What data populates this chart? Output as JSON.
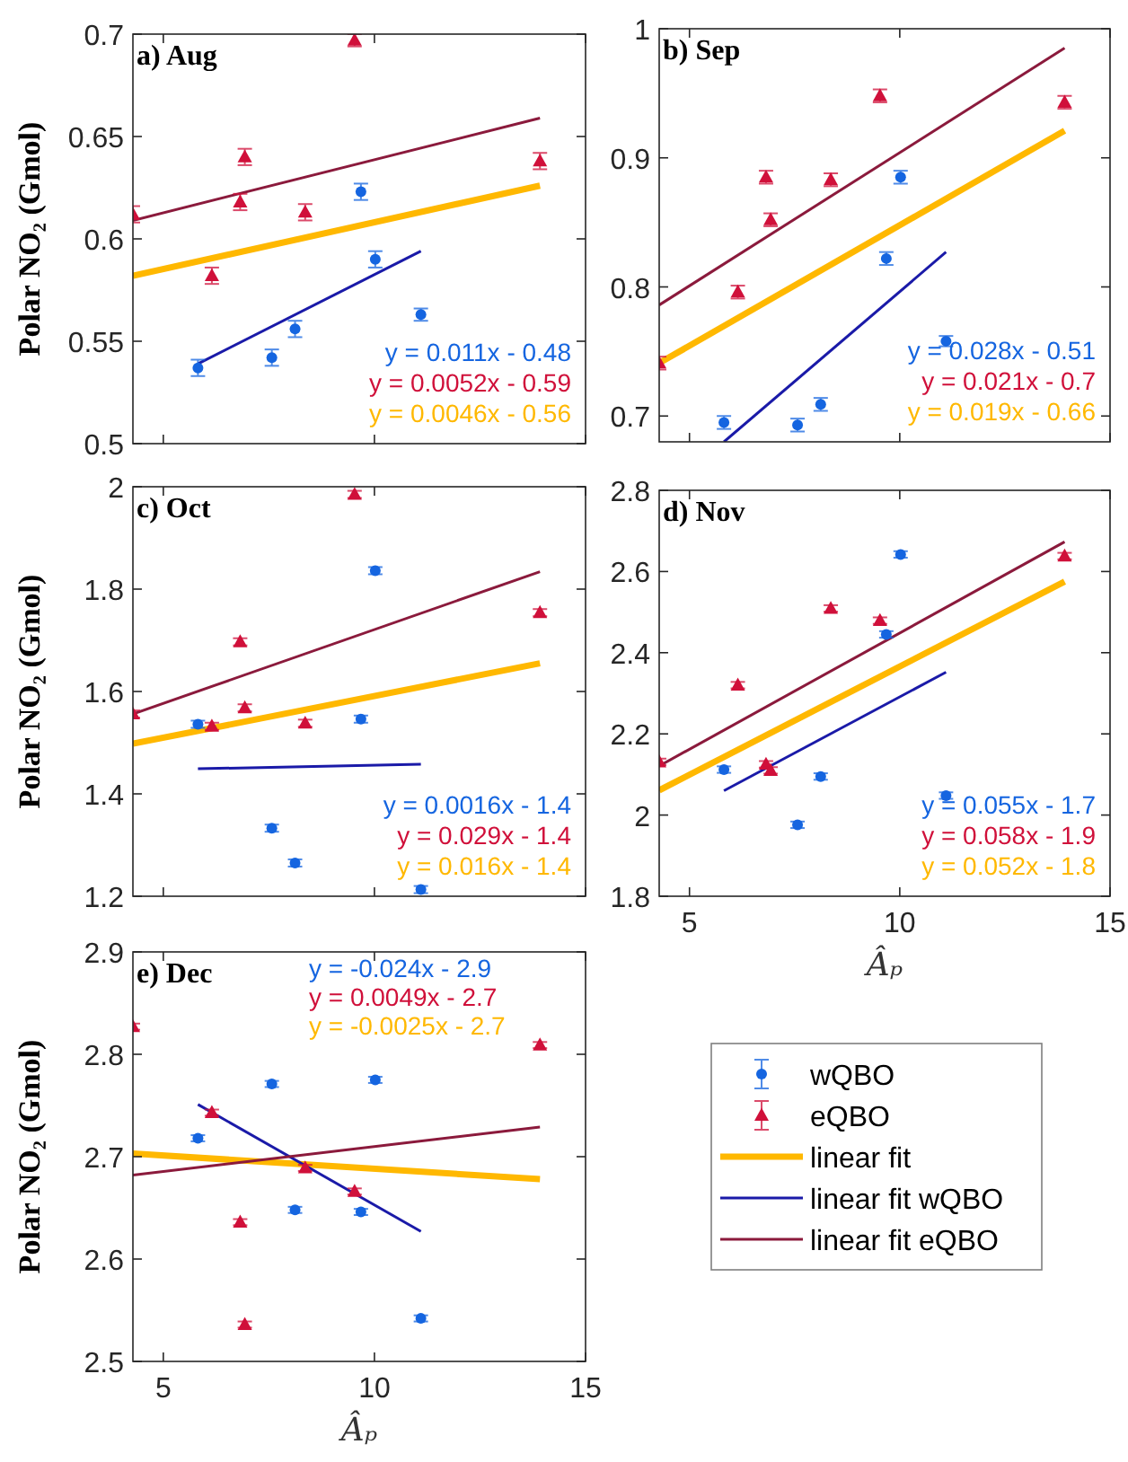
{
  "chart_data": [
    {
      "type": "scatter",
      "title": "a) Aug",
      "ylabel": "Polar NO₂ (Gmol)",
      "xlim": [
        4.28,
        15
      ],
      "xticks": [
        5,
        10,
        15
      ],
      "ylim": [
        0.5,
        0.7
      ],
      "yticks": [
        0.5,
        0.55,
        0.6,
        0.65,
        0.7
      ],
      "tick_labels": "y",
      "annotations": [
        "y = 0.011x - 0.48",
        "y = 0.0052x - 0.59",
        "y = 0.0046x - 0.56"
      ],
      "series": [
        {
          "type": "scatter",
          "marker": "circle",
          "color": "#1565e0",
          "x": [
            5.82,
            7.57,
            8.12,
            9.68,
            10.02,
            11.1
          ],
          "values": [
            0.537,
            0.542,
            0.556,
            0.623,
            0.59,
            0.563
          ],
          "errors": [
            0.004,
            0.004,
            0.004,
            0.004,
            0.004,
            0.003
          ]
        },
        {
          "type": "scatter",
          "marker": "triangle",
          "color": "#d0103a",
          "x": [
            4.28,
            6.15,
            6.82,
            6.93,
            8.36,
            9.53,
            13.92
          ],
          "values": [
            0.612,
            0.582,
            0.618,
            0.64,
            0.613,
            0.697,
            0.638
          ],
          "errors": [
            0.004,
            0.004,
            0.004,
            0.004,
            0.004,
            0.003,
            0.004
          ]
        },
        {
          "type": "line",
          "color": "#ffb800",
          "x": [
            4.28,
            13.92
          ],
          "values": [
            0.582,
            0.626
          ]
        },
        {
          "type": "line",
          "color": "#1a1aa8",
          "x": [
            5.82,
            11.1
          ],
          "values": [
            0.539,
            0.594
          ]
        },
        {
          "type": "line",
          "color": "#8b1a3c",
          "x": [
            4.28,
            13.92
          ],
          "values": [
            0.609,
            0.659
          ]
        }
      ]
    },
    {
      "type": "scatter",
      "title": "b) Sep",
      "xlim": [
        4.28,
        15
      ],
      "xticks": [
        5,
        10,
        15
      ],
      "ylim": [
        0.68,
        1
      ],
      "yticks": [
        0.7,
        0.8,
        0.9,
        1
      ],
      "tick_labels": "y",
      "annotations": [
        "y = 0.028x - 0.51",
        "y = 0.021x - 0.7",
        "y = 0.019x - 0.66"
      ],
      "series": [
        {
          "type": "scatter",
          "marker": "circle",
          "color": "#1565e0",
          "x": [
            5.82,
            7.57,
            8.12,
            9.68,
            10.02,
            11.1
          ],
          "values": [
            0.695,
            0.693,
            0.709,
            0.822,
            0.885,
            0.758
          ],
          "errors": [
            0.005,
            0.005,
            0.005,
            0.005,
            0.005,
            0.004
          ]
        },
        {
          "type": "scatter",
          "marker": "triangle",
          "color": "#d0103a",
          "x": [
            4.28,
            6.15,
            6.82,
            6.93,
            8.36,
            9.53,
            13.92
          ],
          "values": [
            0.741,
            0.796,
            0.885,
            0.852,
            0.883,
            0.948,
            0.943
          ],
          "errors": [
            0.005,
            0.005,
            0.005,
            0.005,
            0.005,
            0.005,
            0.005
          ]
        },
        {
          "type": "line",
          "color": "#ffb800",
          "x": [
            4.28,
            13.92
          ],
          "values": [
            0.741,
            0.921
          ]
        },
        {
          "type": "line",
          "color": "#1a1aa8",
          "x": [
            5.82,
            11.1
          ],
          "values": [
            0.68,
            0.827
          ]
        },
        {
          "type": "line",
          "color": "#8b1a3c",
          "x": [
            4.28,
            13.92
          ],
          "values": [
            0.786,
            0.985
          ]
        }
      ]
    },
    {
      "type": "scatter",
      "title": "c) Oct",
      "ylabel": "Polar NO₂ (Gmol)",
      "xlim": [
        4.28,
        15
      ],
      "xticks": [
        5,
        10,
        15
      ],
      "ylim": [
        1.2,
        2
      ],
      "yticks": [
        1.2,
        1.4,
        1.6,
        1.8,
        2
      ],
      "tick_labels": "y",
      "annotations": [
        "y = 0.0016x - 1.4",
        "y = 0.029x - 1.4",
        "y = 0.016x - 1.4"
      ],
      "series": [
        {
          "type": "scatter",
          "marker": "circle",
          "color": "#1565e0",
          "x": [
            5.82,
            7.57,
            8.12,
            9.68,
            10.02,
            11.1
          ],
          "values": [
            1.536,
            1.333,
            1.265,
            1.546,
            1.836,
            1.213
          ],
          "errors": [
            0.007,
            0.007,
            0.007,
            0.007,
            0.007,
            0.007
          ]
        },
        {
          "type": "scatter",
          "marker": "triangle",
          "color": "#d0103a",
          "x": [
            4.28,
            6.15,
            6.82,
            6.93,
            8.36,
            9.53,
            13.92
          ],
          "values": [
            1.556,
            1.532,
            1.697,
            1.568,
            1.538,
            1.985,
            1.754
          ],
          "errors": [
            0.007,
            0.007,
            0.007,
            0.007,
            0.007,
            0.007,
            0.007
          ]
        },
        {
          "type": "line",
          "color": "#ffb800",
          "x": [
            4.28,
            13.92
          ],
          "values": [
            1.498,
            1.655
          ]
        },
        {
          "type": "line",
          "color": "#1a1aa8",
          "x": [
            5.82,
            11.1
          ],
          "values": [
            1.449,
            1.458
          ]
        },
        {
          "type": "line",
          "color": "#8b1a3c",
          "x": [
            4.28,
            13.92
          ],
          "values": [
            1.556,
            1.834
          ]
        }
      ]
    },
    {
      "type": "scatter",
      "title": "d) Nov",
      "xlabel": "Âₚ",
      "xlim": [
        4.28,
        15
      ],
      "xticks": [
        5,
        10,
        15
      ],
      "ylim": [
        1.8,
        2.8
      ],
      "yticks": [
        1.8,
        2,
        2.2,
        2.4,
        2.6,
        2.8
      ],
      "annotations": [
        "y = 0.055x - 1.7",
        "y = 0.058x - 1.9",
        "y = 0.052x - 1.8"
      ],
      "series": [
        {
          "type": "scatter",
          "marker": "circle",
          "color": "#1565e0",
          "x": [
            5.82,
            7.57,
            8.12,
            9.68,
            10.02,
            11.1
          ],
          "values": [
            2.112,
            1.976,
            2.095,
            2.445,
            2.642,
            2.048
          ],
          "errors": [
            0.008,
            0.008,
            0.008,
            0.008,
            0.008,
            0.008
          ]
        },
        {
          "type": "scatter",
          "marker": "triangle",
          "color": "#d0103a",
          "x": [
            4.28,
            6.15,
            6.82,
            6.93,
            8.36,
            9.53,
            13.92
          ],
          "values": [
            2.131,
            2.32,
            2.125,
            2.11,
            2.509,
            2.479,
            2.638
          ],
          "errors": [
            0.008,
            0.008,
            0.008,
            0.008,
            0.008,
            0.008,
            0.008
          ]
        },
        {
          "type": "line",
          "color": "#ffb800",
          "x": [
            4.28,
            13.92
          ],
          "values": [
            2.061,
            2.575
          ]
        },
        {
          "type": "line",
          "color": "#1a1aa8",
          "x": [
            5.82,
            11.1
          ],
          "values": [
            2.06,
            2.352
          ]
        },
        {
          "type": "line",
          "color": "#8b1a3c",
          "x": [
            4.28,
            13.92
          ],
          "values": [
            2.121,
            2.673
          ]
        }
      ]
    },
    {
      "type": "scatter",
      "title": "e) Dec",
      "ylabel": "Polar NO₂ (Gmol)",
      "xlabel": "Âₚ",
      "xlim": [
        4.28,
        15
      ],
      "xticks": [
        5,
        10,
        15
      ],
      "ylim": [
        2.5,
        2.9
      ],
      "yticks": [
        2.5,
        2.6,
        2.7,
        2.8,
        2.9
      ],
      "legend": "right",
      "annotations": [
        "y = -0.024x - 2.9",
        "y = 0.0049x - 2.7",
        "y = -0.0025x - 2.7"
      ],
      "series": [
        {
          "type": "scatter",
          "name": "wQBO",
          "marker": "circle",
          "color": "#1565e0",
          "x": [
            5.82,
            7.57,
            8.12,
            9.68,
            10.02,
            11.1
          ],
          "values": [
            2.718,
            2.771,
            2.648,
            2.646,
            2.775,
            2.542
          ],
          "errors": [
            0.003,
            0.003,
            0.003,
            0.003,
            0.003,
            0.003
          ]
        },
        {
          "type": "scatter",
          "name": "eQBO",
          "marker": "triangle",
          "color": "#d0103a",
          "x": [
            4.28,
            6.15,
            6.82,
            6.93,
            8.36,
            9.53,
            13.92
          ],
          "values": [
            2.827,
            2.743,
            2.636,
            2.536,
            2.689,
            2.666,
            2.809
          ],
          "errors": [
            0.003,
            0.003,
            0.003,
            0.003,
            0.003,
            0.003,
            0.003
          ]
        },
        {
          "type": "line",
          "name": "linear fit",
          "color": "#ffb800",
          "x": [
            4.28,
            13.92
          ],
          "values": [
            2.703,
            2.678
          ]
        },
        {
          "type": "line",
          "name": "linear fit wQBO",
          "color": "#1a1aa8",
          "x": [
            5.82,
            11.1
          ],
          "values": [
            2.751,
            2.627
          ]
        },
        {
          "type": "line",
          "name": "linear fit eQBO",
          "color": "#8b1a3c",
          "x": [
            4.28,
            13.92
          ],
          "values": [
            2.682,
            2.729
          ]
        }
      ]
    }
  ]
}
